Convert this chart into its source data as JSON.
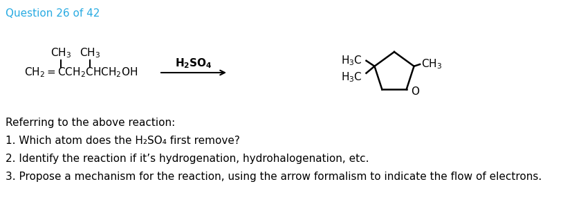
{
  "title": "Question 26 of 42",
  "title_color": "#29ABE2",
  "background_color": "#ffffff",
  "line1_text": "Referring to the above reaction:",
  "q1_text": "1. Which atom does the H₂SO₄ first remove?",
  "q2_text": "2. Identify the reaction if it’s hydrogenation, hydrohalogenation, etc.",
  "q3_text": "3. Propose a mechanism for the reaction, using the arrow formalism to indicate the flow of electrons.",
  "figsize": [
    8.4,
    2.92
  ],
  "dpi": 100,
  "chem_fs": 11,
  "q_fs": 11,
  "title_fs": 11
}
